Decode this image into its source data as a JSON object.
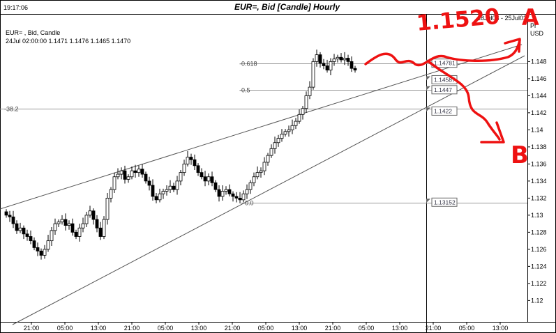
{
  "header": {
    "time": "19:17:06",
    "title": "EUR=, Bid [Candle] Hourly",
    "range": "18Jul03 - 25Jul03",
    "currency_code": "USD",
    "currency_prefix": "Pr"
  },
  "legend": {
    "line1": "EUR= , Bid, Candle",
    "line2": "24Jul 02:00:00 1.1471 1.1476 1.1465 1.1470"
  },
  "fib_levels": [
    {
      "label": "-0.618",
      "price": 1.1478
    },
    {
      "label": "-0.5",
      "price": 1.1447
    },
    {
      "label": "-38.2",
      "price": 1.1425
    },
    {
      "label": "-0.0",
      "price": 1.1315
    }
  ],
  "price_boxes": [
    {
      "label": "1.14781",
      "price": 1.14781
    },
    {
      "label": "1.14587",
      "price": 1.14587
    },
    {
      "label": "1.1447",
      "price": 1.1447
    },
    {
      "label": "1.1422",
      "price": 1.1422
    },
    {
      "label": "1.13152",
      "price": 1.13152
    }
  ],
  "annotations": {
    "target_price": "1.1520",
    "label_a": "A",
    "label_b": "B"
  },
  "chart_data": {
    "type": "candlestick",
    "title": "EUR=, Bid [Candle] Hourly",
    "ylim": [
      1.1175,
      1.1535
    ],
    "y_ticks": [
      "1.148",
      "1.146",
      "1.144",
      "1.142",
      "1.14",
      "1.138",
      "1.136",
      "1.134",
      "1.132",
      "1.13",
      "1.128",
      "1.126",
      "1.124",
      "1.122",
      "1.12"
    ],
    "x_ticks": [
      "21:00",
      "05:00",
      "13:00",
      "21:00",
      "05:00",
      "13:00",
      "21:00",
      "05:00",
      "13:00",
      "21:00",
      "05:00",
      "13:00",
      "21:00",
      "05:00",
      "13:00"
    ],
    "last_bar_index": 100,
    "closes": [
      1.13,
      1.1298,
      1.129,
      1.1282,
      1.1285,
      1.1278,
      1.1275,
      1.127,
      1.1262,
      1.1258,
      1.1253,
      1.126,
      1.127,
      1.1282,
      1.129,
      1.1292,
      1.1295,
      1.1288,
      1.129,
      1.128,
      1.1275,
      1.1285,
      1.129,
      1.13,
      1.1305,
      1.1295,
      1.1285,
      1.1275,
      1.1295,
      1.132,
      1.133,
      1.1345,
      1.1348,
      1.1352,
      1.1342,
      1.1345,
      1.1352,
      1.135,
      1.1354,
      1.1348,
      1.134,
      1.1335,
      1.1322,
      1.1318,
      1.1325,
      1.1328,
      1.133,
      1.1334,
      1.133,
      1.134,
      1.135,
      1.136,
      1.1368,
      1.1365,
      1.1358,
      1.135,
      1.1345,
      1.134,
      1.1345,
      1.1338,
      1.133,
      1.1322,
      1.1328,
      1.133,
      1.1325,
      1.1322,
      1.132,
      1.1318,
      1.1325,
      1.133,
      1.1338,
      1.1345,
      1.135,
      1.1352,
      1.1362,
      1.137,
      1.1378,
      1.1385,
      1.139,
      1.1395,
      1.1398,
      1.14,
      1.1405,
      1.141,
      1.1418,
      1.1425,
      1.144,
      1.145,
      1.148,
      1.1488,
      1.1478,
      1.1475,
      1.147,
      1.148,
      1.1483,
      1.1485,
      1.1482,
      1.1484,
      1.148,
      1.1472,
      1.147
    ],
    "series": [
      {
        "name": "EUR= , Bid, Candle"
      }
    ]
  }
}
